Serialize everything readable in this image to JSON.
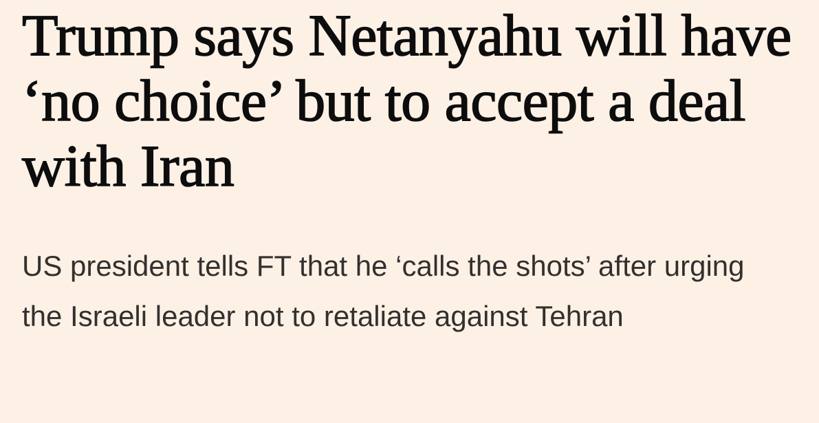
{
  "headline": "Trump says Netanyahu will have ‘no choice’ but to accept a deal with Iran",
  "standfirst": "US president tells FT that he ‘calls the shots’ after urging the Israeli leader not to retaliate against Tehran"
}
